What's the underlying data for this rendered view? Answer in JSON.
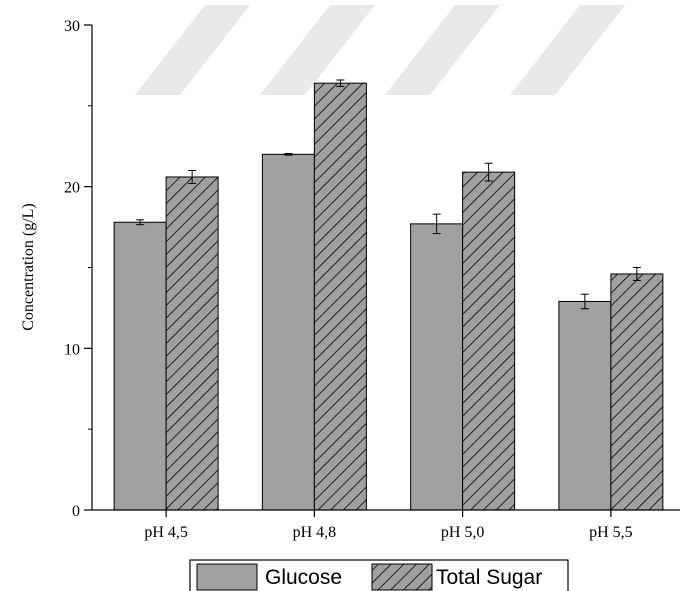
{
  "chart_data": {
    "type": "bar",
    "categories": [
      "pH 4,5",
      "pH 4,8",
      "pH 5,0",
      "pH 5,5"
    ],
    "series": [
      {
        "name": "Glucose",
        "values": [
          17.8,
          22.0,
          17.7,
          12.9
        ],
        "errors": [
          0.15,
          0.05,
          0.6,
          0.45
        ],
        "fill": "#a0a0a0",
        "pattern": "solid"
      },
      {
        "name": "Total Sugar",
        "values": [
          20.6,
          26.4,
          20.9,
          14.6
        ],
        "errors": [
          0.4,
          0.2,
          0.55,
          0.4
        ],
        "fill": "#a0a0a0",
        "pattern": "hatch"
      }
    ],
    "title": "",
    "xlabel": "",
    "ylabel": "Concentration (g/L)",
    "ylim": [
      0,
      30
    ],
    "yticks": [
      0,
      10,
      20,
      30
    ],
    "grid": false,
    "legend_position": "bottom"
  },
  "colors": {
    "bar_fill": "#a0a0a0",
    "bar_stroke": "#000000",
    "hatch_stroke": "#000000",
    "watermark": "#e9e9e9"
  }
}
